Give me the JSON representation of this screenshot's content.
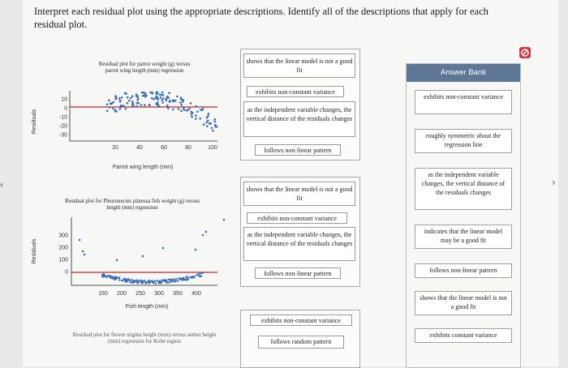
{
  "instructions": "Interpret each residual plot using the appropriate descriptions. Identify all of the descriptions that apply for each residual plot.",
  "plots": [
    {
      "title": "Residual plot for parrot weight (g) versus parrot wing length (mm) regression",
      "ylabel": "Residuals",
      "xlabel": "Parrot wing length (mm)",
      "xticks": [
        "20",
        "40",
        "60",
        "80",
        "100"
      ],
      "yticks": [
        "10",
        "0",
        "-10",
        "-20",
        "-30"
      ]
    },
    {
      "title": "Residual plot for Pleuronectes platessa fish weight (g) versus length (mm) regression",
      "ylabel": "Residuals",
      "xlabel": "Fish length (mm)",
      "xticks": [
        "150",
        "200",
        "250",
        "300",
        "350",
        "400"
      ],
      "yticks": [
        "300",
        "200",
        "100",
        "0"
      ]
    },
    {
      "title": "Residual plot for flower stigma height (mm) versus anther height (mm) regression for Kobe region",
      "ylabel": "",
      "xlabel": ""
    }
  ],
  "drop_zones": [
    {
      "items": [
        "shows that the linear model is not a good fit",
        "exhibits non-constant variance",
        "as the independent variable changes, the vertical distance of the residuals changes",
        "follows non-linear pattern"
      ]
    },
    {
      "items": [
        "shows that the linear model is not a good fit",
        "exhibits non-constant variance",
        "as the independent variable changes, the vertical distance of the residuals changes",
        "follows non-linear pattern"
      ]
    },
    {
      "items": [
        "exhibits non-constant variance",
        "follows random pattern"
      ]
    }
  ],
  "answer_bank": {
    "title": "Answer Bank",
    "items": [
      "exhibits non-constant variance",
      "roughly symmetric about the regression line",
      "as the independent variable changes, the vertical distance of the residuals changes",
      "indicates that the linear model may be a good fit",
      "follows non-linear pattern",
      "shows that the linear model is not a good fit",
      "exhibits constant variance"
    ]
  },
  "colors": {
    "points": "#3a6fb8",
    "zero_line": "#cc2222",
    "bank_header": "#5f7796",
    "status": "#c93a45"
  },
  "status_icon": "no-entry-icon"
}
